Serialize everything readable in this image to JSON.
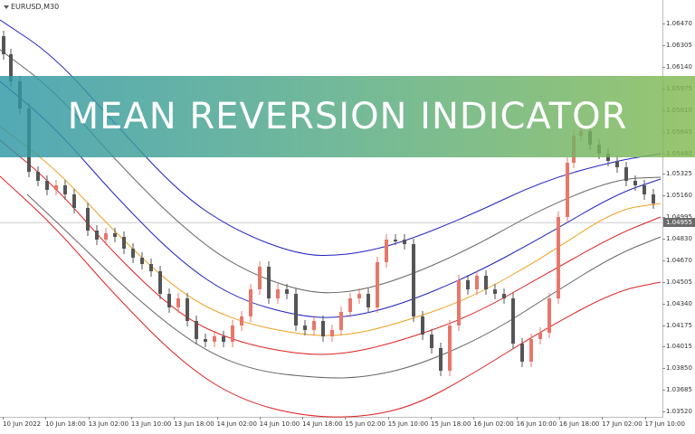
{
  "chart": {
    "symbol": "EURUSD,M30",
    "current_price": "1.04955",
    "price_ticks": [
      "1.06470",
      "1.06305",
      "1.06140",
      "1.05975",
      "1.05810",
      "1.05645",
      "1.05480",
      "1.05325",
      "1.05160",
      "1.04995",
      "1.04830",
      "1.04670",
      "1.04505",
      "1.04340",
      "1.04175",
      "1.04015",
      "1.03850",
      "1.03685",
      "1.03520"
    ],
    "time_ticks": [
      "10 Jun 2022",
      "10 Jun 18:00",
      "13 Jun 02:00",
      "13 Jun 10:00",
      "13 Jun 18:00",
      "14 Jun 02:00",
      "14 Jun 10:00",
      "14 Jun 18:00",
      "15 Jun 02:00",
      "15 Jun 10:00",
      "15 Jun 18:00",
      "16 Jun 02:00",
      "16 Jun 10:00",
      "16 Jun 18:00",
      "17 Jun 02:00",
      "17 Jun 10:00"
    ]
  },
  "banner": {
    "title": "MEAN REVERSION  INDICATOR"
  },
  "colors": {
    "bull_candle": "#e8776a",
    "bear_candle": "#555555",
    "band_outer": "#e02020",
    "band_middle": "#2020c0",
    "band_inner": "#666666",
    "mean_line": "#f0a020"
  },
  "chart_data": {
    "type": "candlestick",
    "y_range": [
      1.0352,
      1.0662
    ],
    "x_range": [
      "10 Jun 2022",
      "17 Jun 10:00"
    ],
    "timeframe": "M30",
    "visible_price_labels": [
      "1.06470",
      "1.06305",
      "1.06140",
      "1.05975",
      "1.05810",
      "1.05645",
      "1.05480",
      "1.05325",
      "1.05160",
      "1.04995",
      "1.04830",
      "1.04670",
      "1.04505",
      "1.04340",
      "1.04175",
      "1.04015",
      "1.03850",
      "1.03685",
      "1.03520"
    ]
  }
}
